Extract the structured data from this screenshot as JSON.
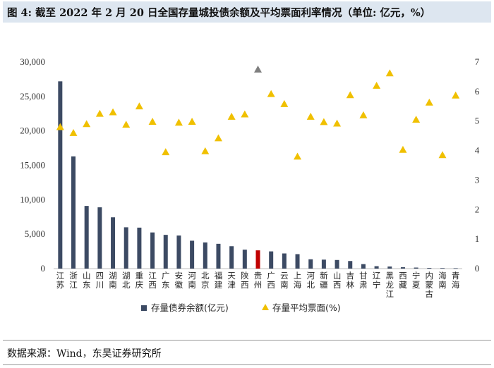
{
  "figure": {
    "title": "图 4: 截至 2022 年 2 月 20 日全国存量城投债余额及平均票面利率情况（单位: 亿元，%）",
    "source": "数据来源：Wind，东吴证券研究所"
  },
  "chart_data": {
    "type": "bar+scatter",
    "categories": [
      "江苏",
      "浙江",
      "山东",
      "四川",
      "湖南",
      "湖北",
      "重庆",
      "江西",
      "广东",
      "安徽",
      "河南",
      "北京",
      "福建",
      "天津",
      "陕西",
      "贵州",
      "广西",
      "云南",
      "上海",
      "河北",
      "新疆",
      "山西",
      "吉林",
      "甘肃",
      "辽宁",
      "黑龙江",
      "西藏",
      "宁夏",
      "内蒙古",
      "海南",
      "青海"
    ],
    "series": [
      {
        "name": "存量债券余额(亿元)",
        "kind": "bar",
        "axis": "left",
        "color": "#3c4a63",
        "highlight_index": 15,
        "highlight_color": "#c00000",
        "values": [
          27200,
          16300,
          9100,
          8900,
          7450,
          6000,
          5950,
          5250,
          4900,
          4800,
          4050,
          3800,
          3600,
          3250,
          2750,
          2650,
          2500,
          2200,
          2100,
          1350,
          1300,
          1250,
          1100,
          650,
          350,
          300,
          200,
          150,
          100,
          80,
          60
        ]
      },
      {
        "name": "存量平均票面(%)",
        "kind": "scatter",
        "axis": "right",
        "color": "#f0c000",
        "highlight_index": 15,
        "highlight_color": "#7f7f7f",
        "marker": "triangle",
        "values": [
          4.8,
          4.6,
          4.9,
          5.25,
          5.3,
          4.88,
          5.5,
          4.98,
          3.95,
          4.95,
          4.98,
          3.98,
          4.42,
          5.15,
          5.23,
          6.75,
          5.92,
          5.58,
          3.8,
          5.15,
          4.97,
          4.92,
          5.88,
          5.2,
          6.2,
          6.62,
          4.03,
          5.05,
          5.63,
          3.85,
          5.87
        ]
      }
    ],
    "y_left": {
      "min": 0,
      "max": 30000,
      "step": 5000,
      "tick_labels": [
        "0",
        "5,000",
        "10,000",
        "15,000",
        "20,000",
        "25,000",
        "30,000"
      ]
    },
    "y_right": {
      "min": 0,
      "max": 7,
      "step": 1,
      "tick_labels": [
        "0",
        "1",
        "2",
        "3",
        "4",
        "5",
        "6",
        "7"
      ]
    },
    "legend": {
      "position": "bottom",
      "items": [
        {
          "label": "存量债券余额(亿元)",
          "symbol": "square",
          "color": "#3c4a63"
        },
        {
          "label": "存量平均票面(%)",
          "symbol": "triangle",
          "color": "#f0c000"
        }
      ]
    },
    "grid": false
  }
}
